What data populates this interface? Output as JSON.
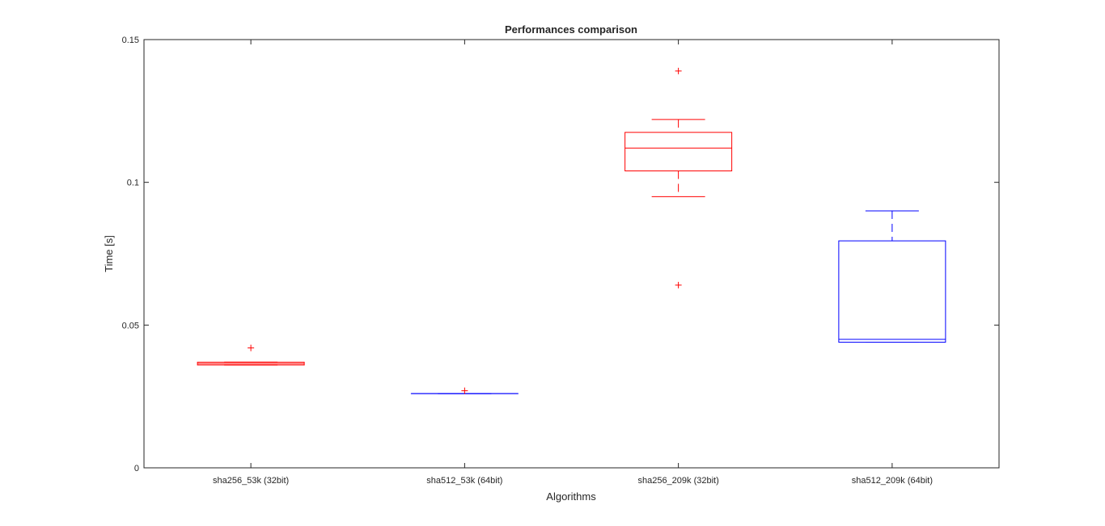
{
  "chart_data": {
    "type": "boxplot",
    "title": "Performances comparison",
    "xlabel": "Algorithms",
    "ylabel": "Time [s]",
    "ylim": [
      0,
      0.15
    ],
    "yticks": [
      0,
      0.05,
      0.1,
      0.15
    ],
    "ytick_labels": [
      "0",
      "0.05",
      "0.1",
      "0.15"
    ],
    "grid": false,
    "categories": [
      "sha256_53k (32bit)",
      "sha512_53k (64bit)",
      "sha256_209k (32bit)",
      "sha512_209k (64bit)"
    ],
    "boxes": [
      {
        "color": "#ff0000",
        "min": 0.036,
        "q1": 0.036,
        "median": 0.0365,
        "q3": 0.037,
        "max": 0.037,
        "outliers": [
          0.042
        ]
      },
      {
        "color": "#0000ff",
        "min": 0.026,
        "q1": 0.026,
        "median": 0.026,
        "q3": 0.026,
        "max": 0.026,
        "outliers": [
          0.027
        ]
      },
      {
        "color": "#ff0000",
        "min": 0.095,
        "q1": 0.104,
        "median": 0.112,
        "q3": 0.1175,
        "max": 0.122,
        "outliers": [
          0.139,
          0.064
        ]
      },
      {
        "color": "#0000ff",
        "min": 0.044,
        "q1": 0.044,
        "median": 0.045,
        "q3": 0.0795,
        "max": 0.09,
        "outliers": []
      }
    ]
  }
}
